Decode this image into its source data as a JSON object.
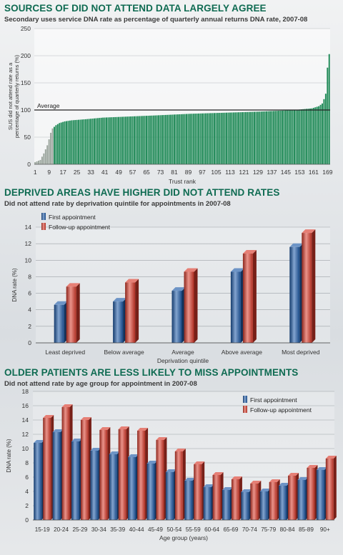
{
  "sections": [
    {
      "title": "SOURCES OF DID NOT ATTEND DATA LARGELY AGREE",
      "subtitle": "Secondary uses service DNA rate as percentage of quarterly annual returns DNA rate, 2007-08"
    },
    {
      "title": "DEPRIVED AREAS HAVE HIGHER DID NOT ATTEND RATES",
      "subtitle": "Did not attend rate by deprivation quintile for appointments in 2007-08"
    },
    {
      "title": "OLDER PATIENTS ARE LESS LIKELY TO MISS APPOINTMENTS",
      "subtitle": "Did not attend rate by age group for appointment in 2007-08"
    }
  ],
  "chart_data": [
    {
      "type": "bar",
      "xlabel": "Trust rank",
      "ylabel": "SUS did not attend rate as a percentage of quarterly returns (%)",
      "ylim": [
        0,
        250
      ],
      "yticks": [
        0,
        50,
        100,
        150,
        200,
        250
      ],
      "xticks": [
        1,
        9,
        17,
        25,
        33,
        41,
        49,
        57,
        65,
        73,
        81,
        89,
        97,
        105,
        113,
        121,
        129,
        137,
        145,
        153,
        161,
        169
      ],
      "reference_line": {
        "label": "Average",
        "value": 100
      },
      "n": 170,
      "values_profile": [
        [
          1,
          4
        ],
        [
          4,
          8
        ],
        [
          6,
          20
        ],
        [
          8,
          35
        ],
        [
          9,
          46
        ],
        [
          10,
          58
        ],
        [
          11,
          66
        ],
        [
          13,
          72
        ],
        [
          15,
          76
        ],
        [
          18,
          79
        ],
        [
          22,
          81
        ],
        [
          30,
          83
        ],
        [
          40,
          86
        ],
        [
          55,
          88
        ],
        [
          70,
          90
        ],
        [
          90,
          93
        ],
        [
          110,
          95
        ],
        [
          130,
          97
        ],
        [
          150,
          100
        ],
        [
          160,
          103
        ],
        [
          164,
          107
        ],
        [
          166,
          112
        ],
        [
          167,
          120
        ],
        [
          168,
          130
        ],
        [
          169,
          178
        ],
        [
          170,
          203
        ]
      ],
      "bar_color": "#1f8a57",
      "grid": true
    },
    {
      "type": "bar",
      "xlabel": "Deprivation quintile",
      "ylabel": "DNA rate (%)",
      "ylim": [
        0,
        14
      ],
      "yticks": [
        0,
        2,
        4,
        6,
        8,
        10,
        12,
        14
      ],
      "categories": [
        "Least deprived",
        "Below average",
        "Average",
        "Above average",
        "Most deprived"
      ],
      "series": [
        {
          "name": "First appointment",
          "color": "#1e5aa8",
          "values": [
            4.6,
            5.0,
            6.3,
            8.6,
            11.6
          ]
        },
        {
          "name": "Follow-up appointment",
          "color": "#d93a2b",
          "values": [
            6.8,
            7.3,
            8.6,
            10.8,
            13.3
          ]
        }
      ],
      "legend": "top-left",
      "grid": true
    },
    {
      "type": "bar",
      "xlabel": "Age group (years)",
      "ylabel": "DNA rate (%)",
      "ylim": [
        0,
        18
      ],
      "yticks": [
        0,
        2,
        4,
        6,
        8,
        10,
        12,
        14,
        16,
        18
      ],
      "categories": [
        "15-19",
        "20-24",
        "25-29",
        "30-34",
        "35-39",
        "40-44",
        "45-49",
        "50-54",
        "55-59",
        "60-64",
        "65-69",
        "70-74",
        "75-79",
        "80-84",
        "85-89",
        "90+"
      ],
      "series": [
        {
          "name": "First appointment",
          "color": "#1e5aa8",
          "values": [
            10.8,
            12.3,
            11.0,
            9.7,
            9.2,
            8.8,
            7.9,
            6.7,
            5.5,
            4.6,
            4.2,
            3.9,
            4.0,
            4.8,
            5.6,
            7.0
          ]
        },
        {
          "name": "Follow-up appointment",
          "color": "#d93a2b",
          "values": [
            14.3,
            15.8,
            14.0,
            12.6,
            12.7,
            12.5,
            11.2,
            9.6,
            7.8,
            6.3,
            5.7,
            5.1,
            5.3,
            6.2,
            7.3,
            8.6
          ]
        }
      ],
      "legend": "top-right",
      "grid": true
    }
  ]
}
